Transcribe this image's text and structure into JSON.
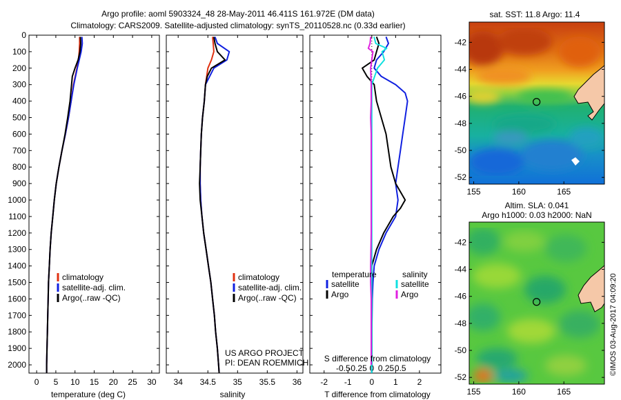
{
  "header": {
    "line1": "Argo profile: aoml 5903324_48 28-May-2011 46.411S 161.972E (DM data)",
    "line2": "Climatology: CARS2009. Satellite-adjusted climatology: synTS_20110528.nc (0.33d earlier)"
  },
  "colors": {
    "climatology": "#e03010",
    "satellite_clim": "#1020e0",
    "argo": "#000000",
    "s_diff_argo": "#e020e0",
    "s_diff_satellite": "#10e0e0",
    "land": "#f5c8a8"
  },
  "chart_data": [
    {
      "type": "line",
      "name": "temperature-profile",
      "xlabel": "temperature (deg C)",
      "ylabel": "",
      "xlim": [
        -2,
        32
      ],
      "ylim": [
        2050,
        0
      ],
      "xticks": [
        0,
        5,
        10,
        15,
        20,
        25,
        30
      ],
      "yticks": [
        0,
        100,
        200,
        300,
        400,
        500,
        600,
        700,
        800,
        900,
        1000,
        1100,
        1200,
        1300,
        1400,
        1500,
        1600,
        1700,
        1800,
        1900,
        2000
      ],
      "legend": {
        "placement": "lower-middle",
        "entries": [
          "climatology",
          "satellite-adj. clim.",
          "Argo(..raw -QC)"
        ]
      },
      "series": [
        {
          "name": "climatology",
          "color": "#e03010",
          "depth": [
            10,
            50,
            100,
            150,
            200,
            300,
            400,
            500,
            600,
            700,
            800,
            900,
            1000,
            1100,
            1200,
            1300,
            1400,
            1500,
            1600,
            1700,
            1800,
            1900,
            2000,
            2050
          ],
          "values": [
            11.2,
            11.2,
            11.1,
            10.9,
            10.5,
            9.6,
            9.0,
            8.3,
            7.5,
            6.6,
            5.8,
            5.1,
            4.6,
            4.2,
            3.8,
            3.5,
            3.3,
            3.1,
            3.0,
            2.9,
            2.8,
            2.7,
            2.6,
            2.6
          ]
        },
        {
          "name": "satellite-adj. clim.",
          "color": "#1020e0",
          "depth": [
            10,
            50,
            100,
            150,
            200,
            300,
            400,
            500,
            600,
            700,
            800,
            900,
            1000,
            1100,
            1200,
            1300,
            1400,
            1500,
            1600,
            1700,
            1800,
            1900,
            2000,
            2050
          ],
          "values": [
            11.8,
            11.9,
            11.6,
            11.1,
            10.6,
            9.7,
            9.0,
            8.3,
            7.5,
            6.6,
            5.8,
            5.1,
            4.6,
            4.2,
            3.8,
            3.5,
            3.3,
            3.1,
            3.0,
            2.9,
            2.8,
            2.7,
            2.6,
            2.6
          ]
        },
        {
          "name": "Argo(..raw -QC)",
          "color": "#000000",
          "depth": [
            10,
            50,
            100,
            150,
            200,
            250,
            300,
            400,
            500,
            600,
            700,
            800,
            900,
            1000,
            1100,
            1200,
            1300,
            1400,
            1500,
            1600,
            1700,
            1800,
            1900,
            2000,
            2050
          ],
          "values": [
            11.4,
            11.5,
            11.3,
            10.8,
            10.0,
            9.3,
            9.1,
            8.7,
            8.1,
            7.4,
            6.6,
            5.8,
            5.1,
            4.6,
            4.2,
            3.8,
            3.5,
            3.3,
            3.1,
            3.0,
            2.9,
            2.8,
            2.7,
            2.6,
            2.6
          ]
        }
      ]
    },
    {
      "type": "line",
      "name": "salinity-profile",
      "xlabel": "salinity",
      "ylabel": "",
      "xlim": [
        33.8,
        36.1
      ],
      "ylim": [
        2050,
        0
      ],
      "xticks": [
        34,
        34.5,
        35,
        35.5,
        36
      ],
      "legend": {
        "placement": "lower-middle",
        "entries": [
          "climatology",
          "satellite-adj. clim.",
          "Argo(..raw -QC)"
        ]
      },
      "series": [
        {
          "name": "climatology",
          "color": "#e03010",
          "depth": [
            10,
            50,
            100,
            150,
            200,
            300,
            400,
            500,
            600,
            700,
            800,
            900,
            1000,
            1100,
            1200,
            1300,
            1400,
            1500,
            1600,
            1700,
            1800,
            1900,
            2000,
            2050
          ],
          "values": [
            34.58,
            34.59,
            34.6,
            34.56,
            34.5,
            34.46,
            34.44,
            34.41,
            34.39,
            34.38,
            34.37,
            34.37,
            34.38,
            34.4,
            34.43,
            34.47,
            34.51,
            34.55,
            34.58,
            34.61,
            34.63,
            34.66,
            34.68,
            34.69
          ]
        },
        {
          "name": "satellite-adj. clim.",
          "color": "#1020e0",
          "depth": [
            10,
            50,
            100,
            150,
            200,
            300,
            400,
            500,
            600,
            700,
            800,
            900,
            1000,
            1100,
            1200,
            1300,
            1400,
            1500,
            1600,
            1700,
            1800,
            1900,
            2000,
            2050
          ],
          "values": [
            34.62,
            34.66,
            34.86,
            34.82,
            34.6,
            34.46,
            34.44,
            34.41,
            34.39,
            34.38,
            34.37,
            34.37,
            34.38,
            34.4,
            34.43,
            34.47,
            34.51,
            34.55,
            34.58,
            34.61,
            34.63,
            34.66,
            34.68,
            34.69
          ]
        },
        {
          "name": "Argo(..raw -QC)",
          "color": "#000000",
          "depth": [
            10,
            50,
            100,
            150,
            200,
            250,
            300,
            400,
            500,
            600,
            700,
            800,
            900,
            1000,
            1100,
            1200,
            1300,
            1400,
            1500,
            1600,
            1700,
            1800,
            1900,
            2000,
            2050
          ],
          "values": [
            34.6,
            34.62,
            34.66,
            34.79,
            34.56,
            34.49,
            34.46,
            34.44,
            34.41,
            34.39,
            34.38,
            34.37,
            34.36,
            34.37,
            34.4,
            34.43,
            34.47,
            34.51,
            34.55,
            34.58,
            34.61,
            34.63,
            34.66,
            34.68,
            34.69
          ]
        }
      ]
    },
    {
      "type": "line",
      "name": "difference-profile",
      "xlabel": "T difference from climatology",
      "top_xlabel": "S difference from climatology",
      "xlim": [
        -2.6,
        2.9
      ],
      "ylim": [
        2050,
        0
      ],
      "xticks": [
        -2,
        -1,
        0,
        1,
        2
      ],
      "top_xticks": [
        "-0.5",
        "-0.25",
        "0",
        "0.25",
        "0.5"
      ],
      "legend": {
        "placement": "lower-middle",
        "groups": [
          "temperature",
          "salinity"
        ],
        "entries": [
          "satellite",
          "Argo",
          "satellite",
          "Argo"
        ]
      },
      "series": [
        {
          "name": "satellite",
          "group": "temperature",
          "color": "#1020e0",
          "depth": [
            10,
            50,
            100,
            150,
            200,
            250,
            300,
            350,
            400,
            500,
            600,
            700,
            800,
            900,
            1000,
            1100,
            1200,
            1300,
            1400,
            1500,
            1600,
            1700,
            1800,
            1900,
            2000,
            2050
          ],
          "values": [
            0.6,
            0.7,
            0.5,
            0.2,
            0.1,
            0.4,
            1.0,
            1.4,
            1.5,
            1.4,
            1.3,
            1.2,
            1.1,
            1.0,
            1.1,
            1.0,
            0.6,
            0.3,
            0.1,
            0.05,
            0.02,
            0.01,
            0.0,
            0.0,
            0.0,
            0.0
          ]
        },
        {
          "name": "Argo",
          "group": "temperature",
          "color": "#000000",
          "depth": [
            10,
            50,
            100,
            150,
            200,
            250,
            300,
            400,
            500,
            600,
            700,
            800,
            900,
            1000,
            1050,
            1100,
            1200,
            1300,
            1400,
            1500,
            1600,
            1700,
            1800,
            1900,
            2000,
            2050
          ],
          "values": [
            0.2,
            0.3,
            0.2,
            0.1,
            -0.4,
            -0.2,
            0.1,
            0.2,
            0.4,
            0.6,
            0.7,
            0.8,
            1.0,
            1.4,
            1.2,
            0.9,
            0.5,
            0.2,
            0.0,
            0.0,
            0.0,
            0.0,
            0.0,
            0.0,
            0.0,
            0.0
          ]
        },
        {
          "name": "satellite",
          "group": "salinity",
          "color": "#10e0e0",
          "depth": [
            10,
            50,
            80,
            100,
            150,
            200,
            300,
            400,
            500,
            600,
            800,
            1000,
            1200,
            1400,
            1600,
            1800,
            2000,
            2050
          ],
          "values": [
            0.04,
            0.07,
            0.26,
            0.18,
            0.22,
            0.1,
            0.0,
            0.0,
            0.0,
            0.0,
            0.0,
            0.0,
            0.0,
            0.0,
            0.0,
            0.0,
            0.0,
            0.0
          ]
        },
        {
          "name": "Argo",
          "group": "salinity",
          "color": "#e020e0",
          "depth": [
            10,
            50,
            80,
            100,
            150,
            200,
            300,
            400,
            500,
            600,
            800,
            1000,
            1200,
            1400,
            1500,
            1600,
            1800,
            2000
          ],
          "values": [
            -0.02,
            -0.03,
            -0.06,
            0.02,
            0.0,
            -0.02,
            -0.01,
            -0.01,
            -0.02,
            -0.01,
            -0.01,
            -0.01,
            -0.01,
            -0.02,
            -0.02,
            -0.01,
            -0.01,
            -0.01
          ]
        }
      ]
    },
    {
      "type": "heatmap",
      "name": "sst-map",
      "title": "sat. SST: 11.8 Argo: 11.4",
      "xlim": [
        154.5,
        169.5
      ],
      "ylim": [
        -52.5,
        -40.5
      ],
      "xticks": [
        155,
        160,
        165
      ],
      "yticks": [
        -42,
        -44,
        -46,
        -48,
        -50,
        -52
      ],
      "profile_marker": {
        "lon": 161.972,
        "lat": -46.411
      }
    },
    {
      "type": "heatmap",
      "name": "sla-map",
      "title": "Altim. SLA: 0.041",
      "subtitle": "Argo h1000: 0.03 h2000: NaN",
      "xlim": [
        154.5,
        169.5
      ],
      "ylim": [
        -52.5,
        -40.5
      ],
      "xticks": [
        155,
        160,
        165
      ],
      "yticks": [
        -42,
        -44,
        -46,
        -48,
        -50,
        -52
      ],
      "profile_marker": {
        "lon": 161.972,
        "lat": -46.411
      }
    }
  ],
  "annotations": {
    "project_line1": "US ARGO PROJECT",
    "project_line2": "PI: DEAN ROEMMICH",
    "footer": "©IMOS 03-Aug-2017 04:09:20"
  }
}
